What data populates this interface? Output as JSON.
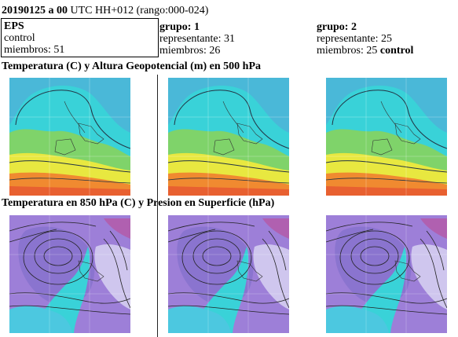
{
  "header": {
    "date_run": "20190125 a 00",
    "rest": " UTC HH+012 (rango:000-024)"
  },
  "eps": {
    "title": "EPS",
    "line1": "control",
    "line2": "miembros: 51"
  },
  "grupo1": {
    "title": "grupo: 1",
    "line1": "representante: 31",
    "line2": "miembros: 26"
  },
  "grupo2": {
    "title": "grupo: 2",
    "line1": "representante: 25",
    "line2_prefix": "miembros: 25 ",
    "line2_bold": "control"
  },
  "sections": {
    "top": "Temperatura (C) y Altura Geopotencial (m) en 500 hPa",
    "bottom": "Temperatura en 850 hPa (C) y Presion en Superficie (hPa)"
  },
  "colors": {
    "cold": "#9d7fd8",
    "cool": "#39d2d8",
    "mild": "#7fd36a",
    "warm": "#e8e840",
    "hot": "#f08a30",
    "lavender": "#cfc6ee"
  }
}
